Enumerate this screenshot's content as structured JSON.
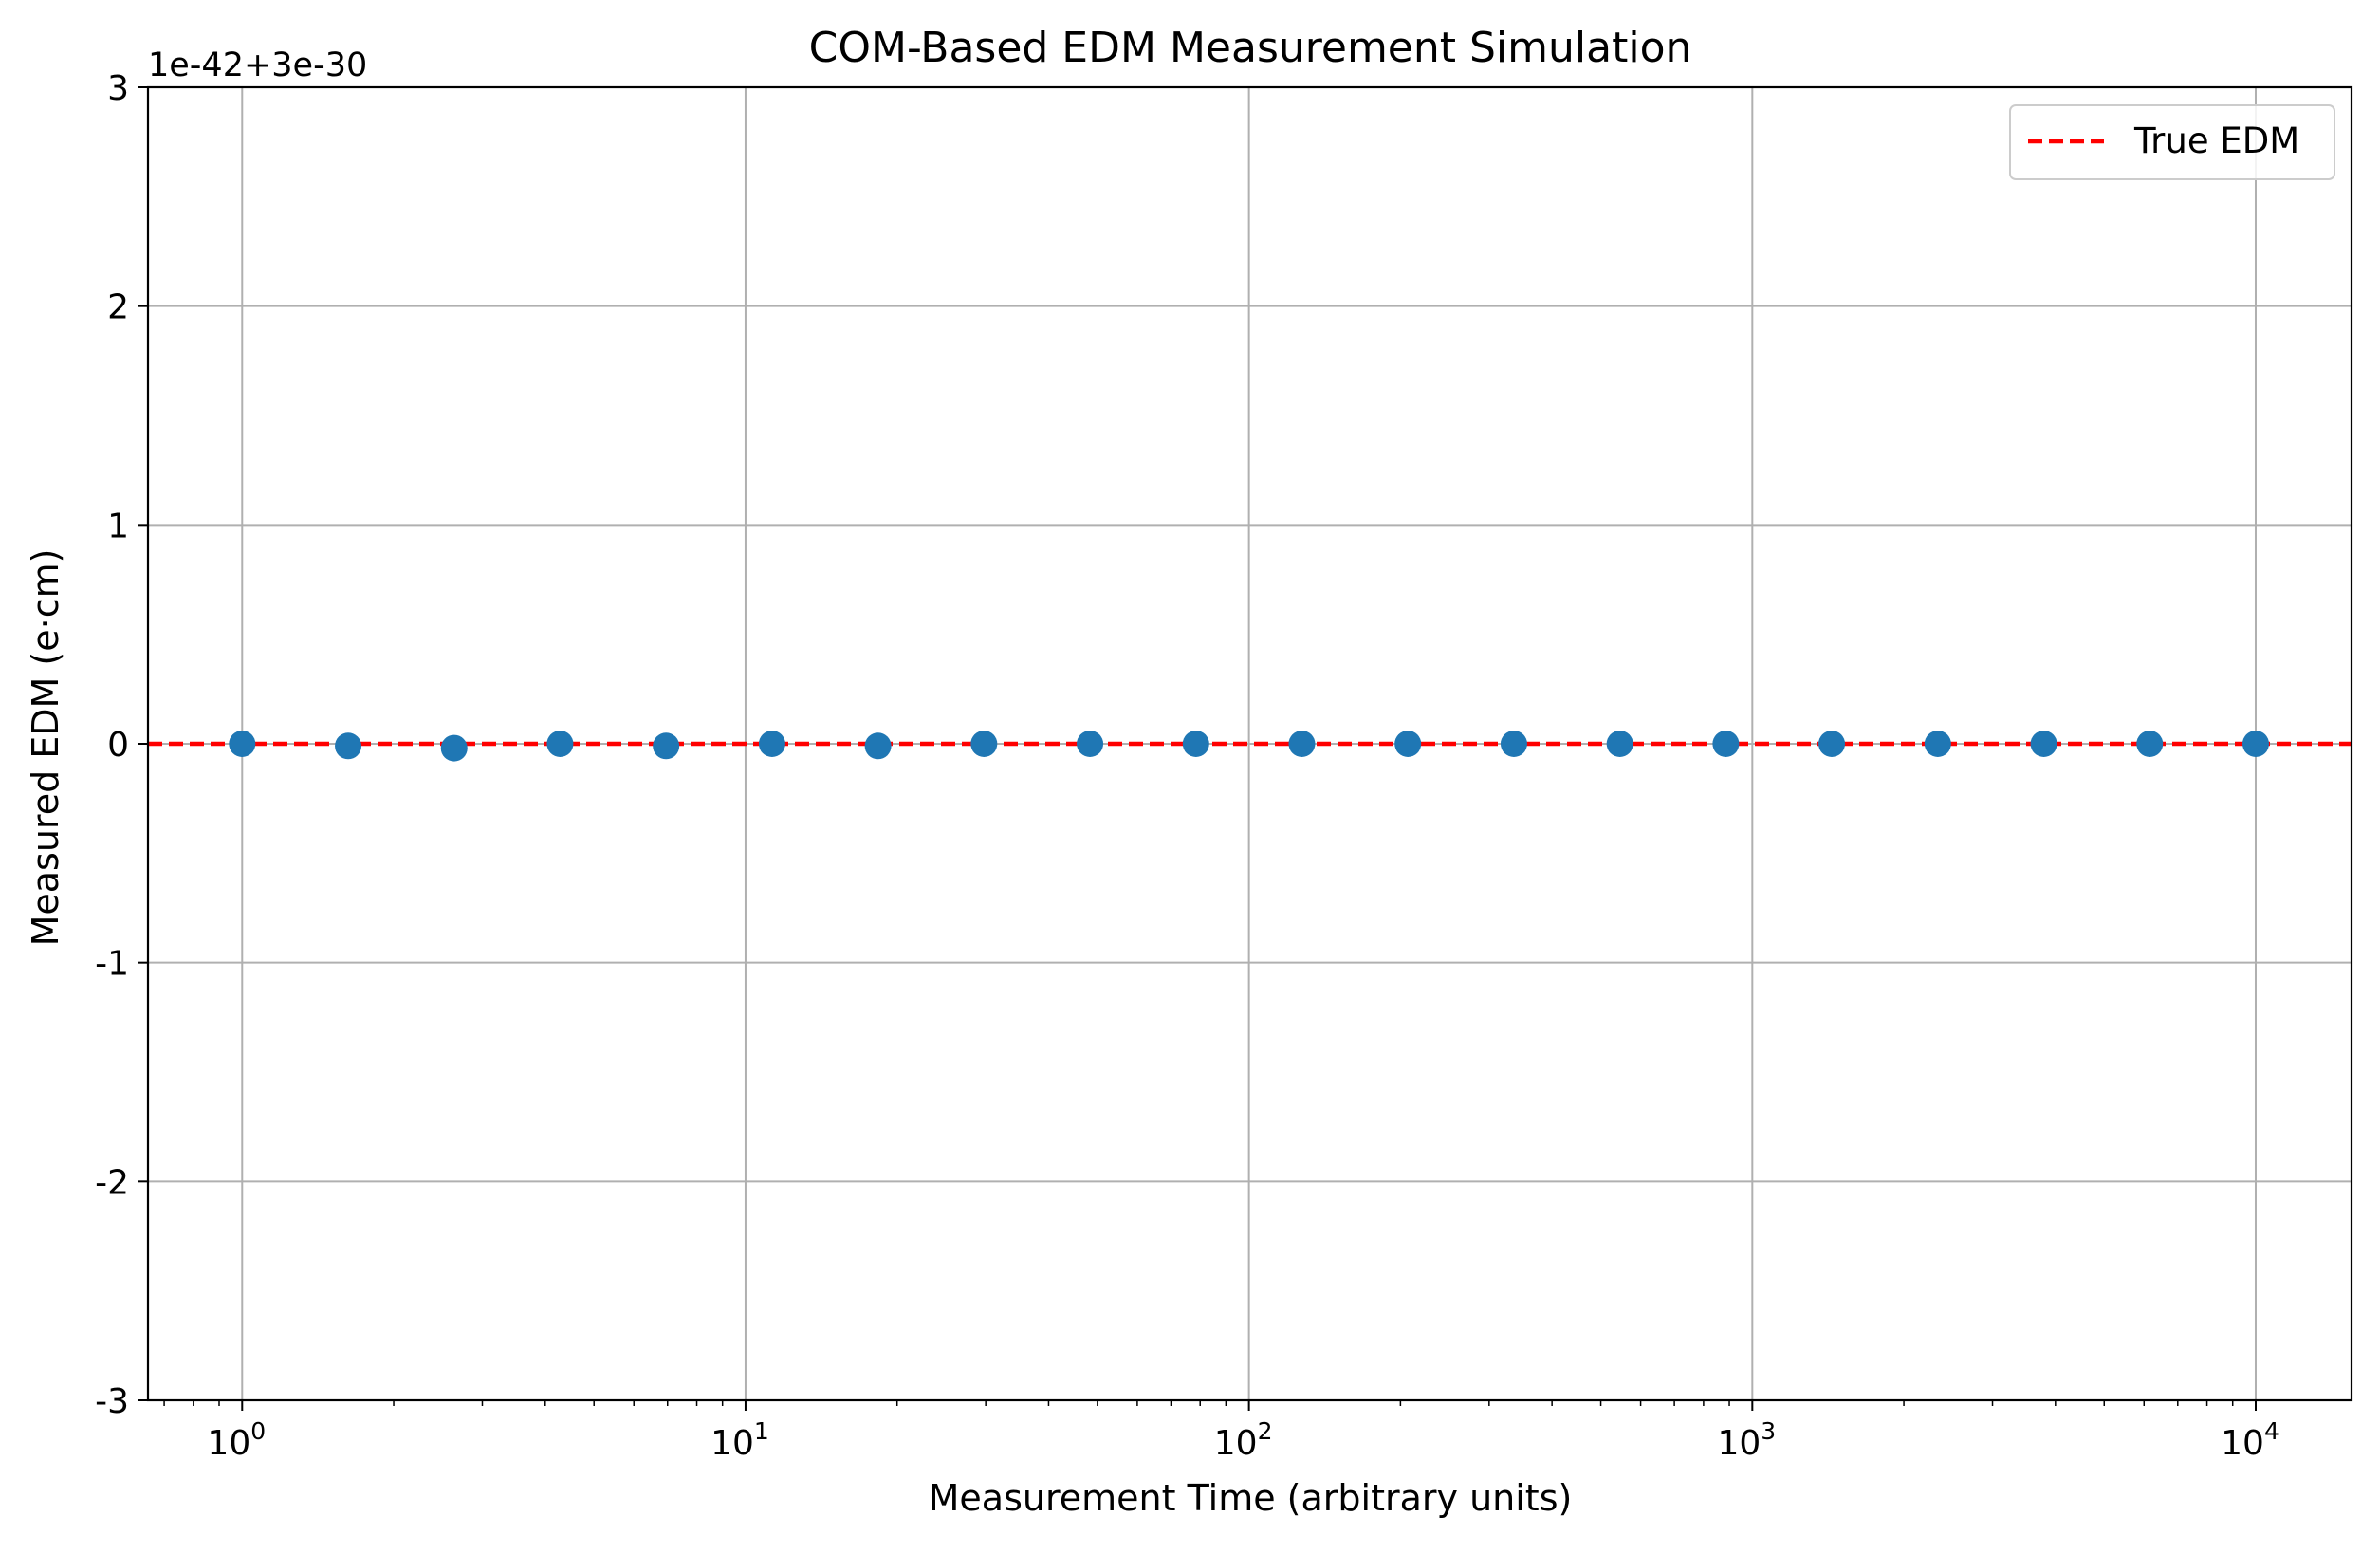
{
  "chart_data": {
    "type": "scatter",
    "title": "COM-Based EDM Measurement Simulation",
    "xlabel": "Measurement Time (arbitrary units)",
    "ylabel": "Measured EDM (e·cm)",
    "x_scale": "log",
    "xlim": [
      0.65,
      15500
    ],
    "ylim": [
      -3,
      3
    ],
    "y_offset_text": "1e-42+3e-30",
    "x_ticks": [
      {
        "base": "10",
        "exp": "0",
        "value": 1
      },
      {
        "base": "10",
        "exp": "1",
        "value": 10
      },
      {
        "base": "10",
        "exp": "2",
        "value": 100
      },
      {
        "base": "10",
        "exp": "3",
        "value": 1000
      },
      {
        "base": "10",
        "exp": "4",
        "value": 10000
      }
    ],
    "y_ticks": [
      {
        "label": "3",
        "value": 3
      },
      {
        "label": "2",
        "value": 2
      },
      {
        "label": "1",
        "value": 1
      },
      {
        "label": "0",
        "value": 0
      },
      {
        "label": "-1",
        "value": -1
      },
      {
        "label": "-2",
        "value": -2
      },
      {
        "label": "-3",
        "value": -3
      }
    ],
    "grid": true,
    "legend_position": "top-right",
    "series": [
      {
        "type": "scatter",
        "color": "#1f77b4",
        "x": [
          1.0,
          1.624,
          2.637,
          4.281,
          6.952,
          11.29,
          18.33,
          29.76,
          48.33,
          78.48,
          127.4,
          206.9,
          336.0,
          545.6,
          885.9,
          1438,
          2336,
          3793,
          6158,
          10000
        ],
        "y": [
          0.0,
          -0.01,
          -0.02,
          0.0,
          -0.01,
          0.0,
          -0.01,
          0.0,
          0.0,
          0.0,
          0.0,
          0.0,
          0.0,
          0.0,
          0.0,
          0.0,
          0.0,
          0.0,
          0.0,
          0.0
        ]
      },
      {
        "name": "True EDM",
        "type": "hline",
        "color": "#ff0000",
        "y": 0
      }
    ]
  }
}
